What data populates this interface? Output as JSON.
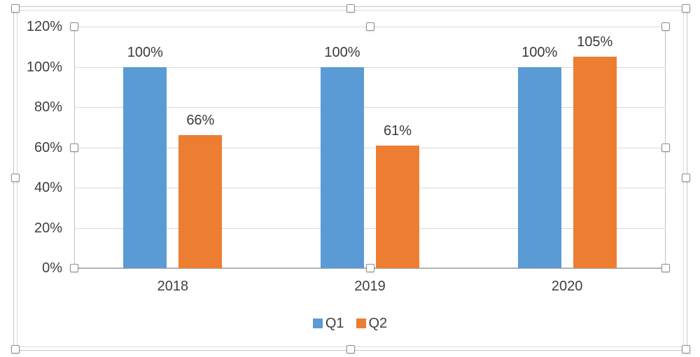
{
  "chart_data": {
    "type": "bar",
    "categories": [
      "2018",
      "2019",
      "2020"
    ],
    "series": [
      {
        "name": "Q1",
        "color": "#5B9BD5",
        "values": [
          100,
          100,
          100
        ],
        "data_labels": [
          "100%",
          "100%",
          "100%"
        ]
      },
      {
        "name": "Q2",
        "color": "#ED7D31",
        "values": [
          66,
          61,
          105
        ],
        "data_labels": [
          "66%",
          "61%",
          "105%"
        ]
      }
    ],
    "title": "",
    "xlabel": "",
    "ylabel": "",
    "ylim": [
      0,
      120
    ],
    "y_ticks": [
      "120%",
      "100%",
      "80%",
      "60%",
      "40%",
      "20%",
      "0%"
    ],
    "grid": true,
    "legend_position": "bottom",
    "legend_labels": [
      "Q1",
      "Q2"
    ]
  },
  "colors": {
    "series_q1": "#5B9BD5",
    "series_q2": "#ED7D31",
    "gridline": "#d8d8d8",
    "axis_line": "#a3a3a3",
    "text": "#3f3f3f",
    "selection_border": "#c6c6c6"
  },
  "state": {
    "selection": "chart-selected"
  }
}
